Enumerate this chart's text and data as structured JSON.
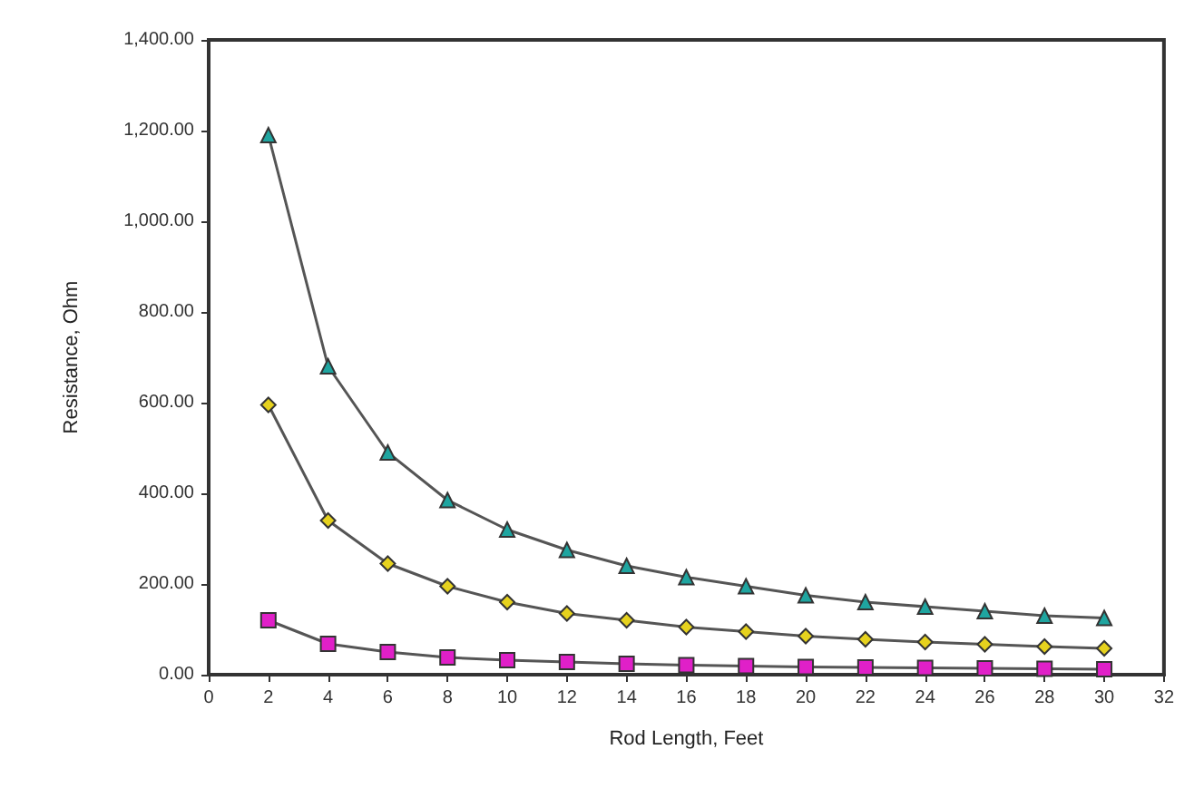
{
  "chart_data": {
    "type": "line",
    "xlabel": "Rod Length, Feet",
    "ylabel": "Resistance, Ohm",
    "x": [
      2,
      4,
      6,
      8,
      10,
      12,
      14,
      16,
      18,
      20,
      22,
      24,
      26,
      28,
      30
    ],
    "series": [
      {
        "color": "#1fa5a0",
        "marker": "triangle",
        "values": [
          1190,
          680,
          490,
          385,
          320,
          275,
          240,
          215,
          195,
          175,
          160,
          150,
          140,
          130,
          125
        ]
      },
      {
        "color": "#e6d21e",
        "marker": "diamond",
        "values": [
          595,
          340,
          245,
          195,
          160,
          135,
          120,
          105,
          95,
          85,
          78,
          72,
          67,
          62,
          58
        ]
      },
      {
        "color": "#e020c8",
        "marker": "square",
        "values": [
          120,
          68,
          50,
          38,
          32,
          28,
          24,
          21,
          19,
          17,
          16,
          15,
          14,
          13,
          12
        ]
      }
    ],
    "xlim": [
      0,
      32
    ],
    "xticks": [
      0,
      2,
      4,
      6,
      8,
      10,
      12,
      14,
      16,
      18,
      20,
      22,
      24,
      26,
      28,
      30,
      32
    ],
    "ylim": [
      0,
      1400
    ],
    "yticks": [
      {
        "value": 0,
        "label": "0.00"
      },
      {
        "value": 200,
        "label": "200.00"
      },
      {
        "value": 400,
        "label": "400.00"
      },
      {
        "value": 600,
        "label": "600.00"
      },
      {
        "value": 800,
        "label": "800.00"
      },
      {
        "value": 1000,
        "label": "1,000.00"
      },
      {
        "value": 1200,
        "label": "1,200.00"
      },
      {
        "value": 1400,
        "label": "1,400.00"
      }
    ],
    "grid": false,
    "line_style": "solid"
  }
}
